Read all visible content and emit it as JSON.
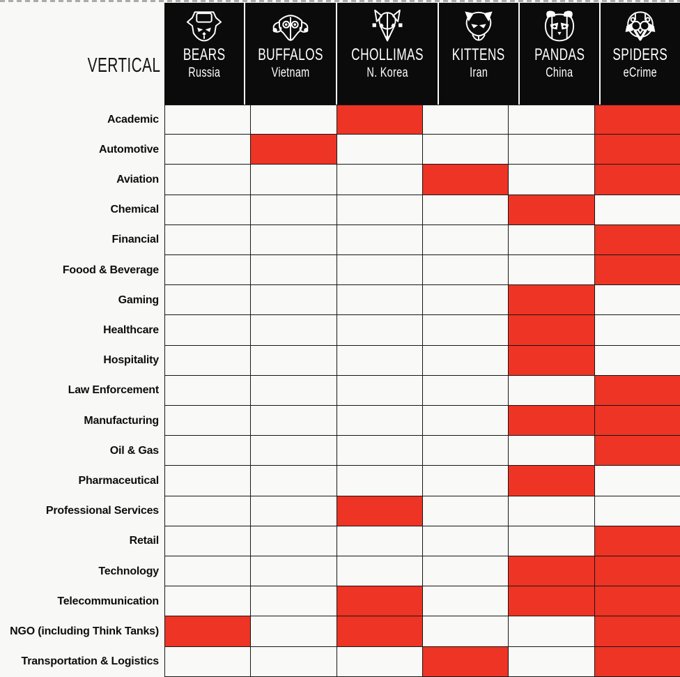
{
  "colors": {
    "highlight_red": "#ee3424",
    "header_black": "#0b0b0b",
    "cell_background": "#f9f9f7",
    "grid_line": "#161616"
  },
  "header": {
    "row_axis_label": "VERTICAL",
    "columns": [
      {
        "name": "BEARS",
        "region": "Russia",
        "icon": "bear-icon"
      },
      {
        "name": "BUFFALOS",
        "region": "Vietnam",
        "icon": "buffalo-icon"
      },
      {
        "name": "CHOLLIMAS",
        "region": "N. Korea",
        "icon": "chollima-icon"
      },
      {
        "name": "KITTENS",
        "region": "Iran",
        "icon": "kitten-icon"
      },
      {
        "name": "PANDAS",
        "region": "China",
        "icon": "panda-icon"
      },
      {
        "name": "SPIDERS",
        "region": "eCrime",
        "icon": "spider-icon"
      }
    ]
  },
  "chart_data": {
    "type": "heatmap",
    "columns": [
      "BEARS Russia",
      "BUFFALOS Vietnam",
      "CHOLLIMAS N. Korea",
      "KITTENS Iran",
      "PANDAS China",
      "SPIDERS eCrime"
    ],
    "rows": [
      "Academic",
      "Automotive",
      "Aviation",
      "Chemical",
      "Financial",
      "Foood & Beverage",
      "Gaming",
      "Healthcare",
      "Hospitality",
      "Law Enforcement",
      "Manufacturing",
      "Oil & Gas",
      "Pharmaceutical",
      "Professional Services",
      "Retail",
      "Technology",
      "Telecommunication",
      "NGO (including Think Tanks)",
      "Transportation & Logistics"
    ],
    "matrix": [
      [
        0,
        0,
        1,
        0,
        0,
        1
      ],
      [
        0,
        1,
        0,
        0,
        0,
        1
      ],
      [
        0,
        0,
        0,
        1,
        0,
        1
      ],
      [
        0,
        0,
        0,
        0,
        1,
        0
      ],
      [
        0,
        0,
        0,
        0,
        0,
        1
      ],
      [
        0,
        0,
        0,
        0,
        0,
        1
      ],
      [
        0,
        0,
        0,
        0,
        1,
        0
      ],
      [
        0,
        0,
        0,
        0,
        1,
        0
      ],
      [
        0,
        0,
        0,
        0,
        1,
        0
      ],
      [
        0,
        0,
        0,
        0,
        0,
        1
      ],
      [
        0,
        0,
        0,
        0,
        1,
        1
      ],
      [
        0,
        0,
        0,
        0,
        0,
        1
      ],
      [
        0,
        0,
        0,
        0,
        1,
        0
      ],
      [
        0,
        0,
        1,
        0,
        0,
        0
      ],
      [
        0,
        0,
        0,
        0,
        0,
        1
      ],
      [
        0,
        0,
        0,
        0,
        1,
        1
      ],
      [
        0,
        0,
        1,
        0,
        1,
        1
      ],
      [
        1,
        0,
        1,
        0,
        0,
        1
      ],
      [
        0,
        0,
        0,
        1,
        0,
        1
      ]
    ],
    "cell_on_color": "#ee3424",
    "cell_off_color": "#f9f9f7",
    "value_meaning": "1 = red cell (vertical targeted by adversary group), 0 = empty cell"
  }
}
